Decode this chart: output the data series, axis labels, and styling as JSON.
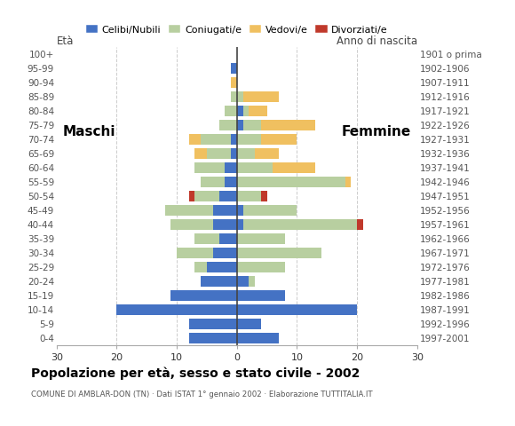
{
  "age_groups": [
    "0-4",
    "5-9",
    "10-14",
    "15-19",
    "20-24",
    "25-29",
    "30-34",
    "35-39",
    "40-44",
    "45-49",
    "50-54",
    "55-59",
    "60-64",
    "65-69",
    "70-74",
    "75-79",
    "80-84",
    "85-89",
    "90-94",
    "95-99",
    "100+"
  ],
  "birth_years": [
    "1997-2001",
    "1992-1996",
    "1987-1991",
    "1982-1986",
    "1977-1981",
    "1972-1976",
    "1967-1971",
    "1962-1966",
    "1957-1961",
    "1952-1956",
    "1947-1951",
    "1942-1946",
    "1937-1941",
    "1932-1936",
    "1927-1931",
    "1922-1926",
    "1917-1921",
    "1912-1916",
    "1907-1911",
    "1902-1906",
    "1901 o prima"
  ],
  "male": {
    "celibi": [
      8,
      8,
      20,
      11,
      6,
      5,
      4,
      3,
      4,
      4,
      3,
      2,
      2,
      1,
      1,
      0,
      0,
      0,
      0,
      1,
      0
    ],
    "coniugati": [
      0,
      0,
      0,
      0,
      0,
      2,
      6,
      4,
      7,
      8,
      4,
      4,
      5,
      4,
      5,
      3,
      2,
      1,
      0,
      0,
      0
    ],
    "vedovi": [
      0,
      0,
      0,
      0,
      0,
      0,
      0,
      0,
      0,
      0,
      0,
      0,
      0,
      2,
      2,
      0,
      0,
      0,
      1,
      0,
      0
    ],
    "divorziati": [
      0,
      0,
      0,
      0,
      0,
      0,
      0,
      0,
      0,
      0,
      1,
      0,
      0,
      0,
      0,
      0,
      0,
      0,
      0,
      0,
      0
    ]
  },
  "female": {
    "nubili": [
      7,
      4,
      20,
      8,
      2,
      0,
      0,
      0,
      1,
      1,
      0,
      0,
      0,
      0,
      0,
      1,
      1,
      0,
      0,
      0,
      0
    ],
    "coniugate": [
      0,
      0,
      0,
      0,
      1,
      8,
      14,
      8,
      19,
      9,
      4,
      18,
      6,
      3,
      4,
      3,
      1,
      1,
      0,
      0,
      0
    ],
    "vedove": [
      0,
      0,
      0,
      0,
      0,
      0,
      0,
      0,
      0,
      0,
      0,
      1,
      7,
      4,
      6,
      9,
      3,
      6,
      0,
      0,
      0
    ],
    "divorziate": [
      0,
      0,
      0,
      0,
      0,
      0,
      0,
      0,
      1,
      0,
      1,
      0,
      0,
      0,
      0,
      0,
      0,
      0,
      0,
      0,
      0
    ]
  },
  "colors": {
    "celibi_nubili": "#4472c4",
    "coniugati": "#b8cfa0",
    "vedovi": "#f0c060",
    "divorziati": "#c0392b"
  },
  "xlim": 30,
  "title": "Popolazione per età, sesso e stato civile - 2002",
  "subtitle": "COMUNE DI AMBLAR-DON (TN) · Dati ISTAT 1° gennaio 2002 · Elaborazione TUTTITALIA.IT",
  "ylabel_left": "Età",
  "ylabel_right": "Anno di nascita",
  "label_maschi": "Maschi",
  "label_femmine": "Femmine",
  "legend_labels": [
    "Celibi/Nubili",
    "Coniugati/e",
    "Vedovi/e",
    "Divorziati/e"
  ]
}
